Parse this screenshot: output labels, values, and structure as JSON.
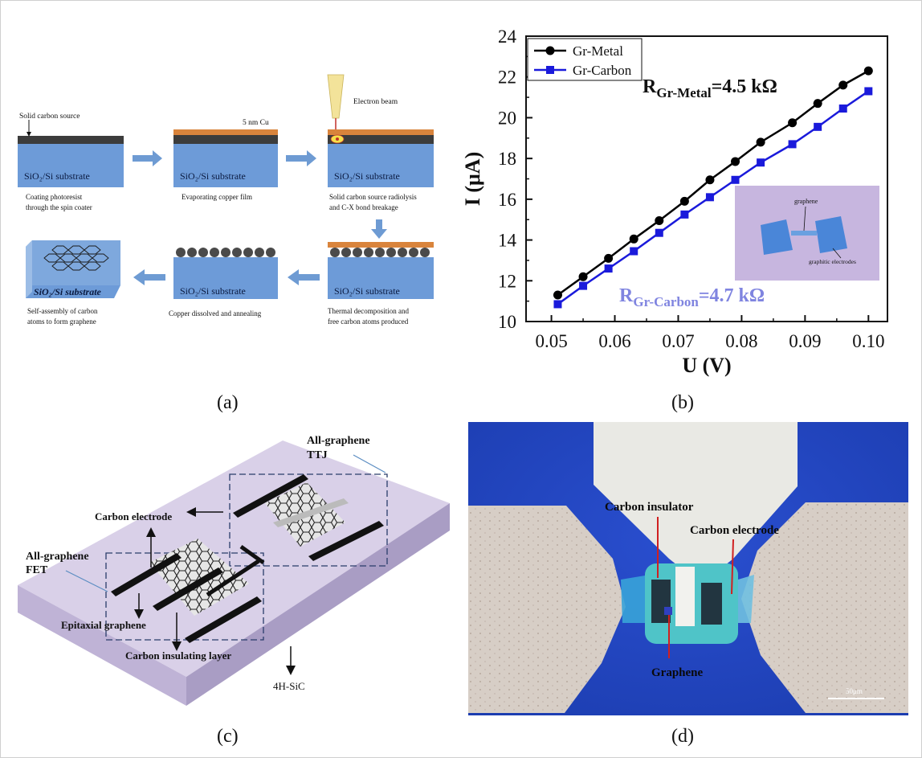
{
  "panels": {
    "a": {
      "label": "(a)",
      "substrate_text": "SiO₂/Si   substrate",
      "substrate_text_italic": "SiO₂/Si   substrate",
      "steps": [
        {
          "top_label": "Solid carbon source",
          "caption": [
            "Coating photoresist",
            "through  the spin coater"
          ]
        },
        {
          "top_label": "5 nm Cu",
          "caption": [
            "Evaporating copper film"
          ]
        },
        {
          "top_label": "Electron beam",
          "caption": [
            "Solid carbon source radiolysis",
            "and C-X bond breakage"
          ]
        },
        {
          "top_label": "",
          "caption": [
            "Thermal decomposition and",
            "free carbon  atoms produced"
          ]
        },
        {
          "top_label": "",
          "caption": [
            "Copper dissolved and annealing"
          ]
        },
        {
          "top_label": "",
          "caption": [
            "Self-assembly of carbon",
            "atoms to form graphene"
          ]
        }
      ]
    },
    "b": {
      "label": "(b)",
      "inset_labels": {
        "top": "graphene",
        "bottom": "graphitic electrodes"
      },
      "annotations": [
        {
          "main": "R",
          "sub": "Gr-Metal",
          "value": "=4.5 kΩ",
          "color": "#111111"
        },
        {
          "main": "R",
          "sub": "Gr-Carbon",
          "value": "=4.7 kΩ",
          "color": "#7f84e0"
        }
      ]
    },
    "c": {
      "label": "(c)",
      "labels": {
        "ttj": [
          "All-graphene",
          "TTJ"
        ],
        "fet": [
          "All-graphene",
          "FET"
        ],
        "carbon_electrode": "Carbon electrode",
        "epitaxial": "Epitaxial graphene",
        "insulating": "Carbon insulating layer",
        "substrate": "4H-SiC"
      }
    },
    "d": {
      "label": "(d)",
      "labels": {
        "insulator": "Carbon insulator",
        "electrode": "Carbon electrode",
        "graphene": "Graphene",
        "scale": "50μm"
      }
    }
  },
  "chart_data": {
    "type": "line",
    "xlabel": "U (V)",
    "ylabel": "I (μA)",
    "xlim": [
      0.046,
      0.103
    ],
    "ylim": [
      10,
      24
    ],
    "xticks": [
      "0.05",
      "0.06",
      "0.07",
      "0.08",
      "0.09",
      "0.10"
    ],
    "yticks": [
      "10",
      "12",
      "14",
      "16",
      "18",
      "20",
      "22",
      "24"
    ],
    "legend_position": "top-left",
    "grid": false,
    "series": [
      {
        "name": "Gr-Metal",
        "color": "#000000",
        "marker": "circle",
        "x": [
          0.051,
          0.055,
          0.059,
          0.063,
          0.067,
          0.071,
          0.075,
          0.079,
          0.083,
          0.088,
          0.092,
          0.096,
          0.1
        ],
        "y": [
          11.3,
          12.2,
          13.1,
          14.05,
          14.95,
          15.9,
          16.95,
          17.85,
          18.8,
          19.75,
          20.7,
          21.6,
          22.3
        ]
      },
      {
        "name": "Gr-Carbon",
        "color": "#1a1adb",
        "marker": "square",
        "x": [
          0.051,
          0.055,
          0.059,
          0.063,
          0.067,
          0.071,
          0.075,
          0.079,
          0.083,
          0.088,
          0.092,
          0.096,
          0.1
        ],
        "y": [
          10.85,
          11.75,
          12.6,
          13.45,
          14.35,
          15.25,
          16.1,
          16.95,
          17.8,
          18.7,
          19.55,
          20.45,
          21.3
        ]
      }
    ]
  }
}
